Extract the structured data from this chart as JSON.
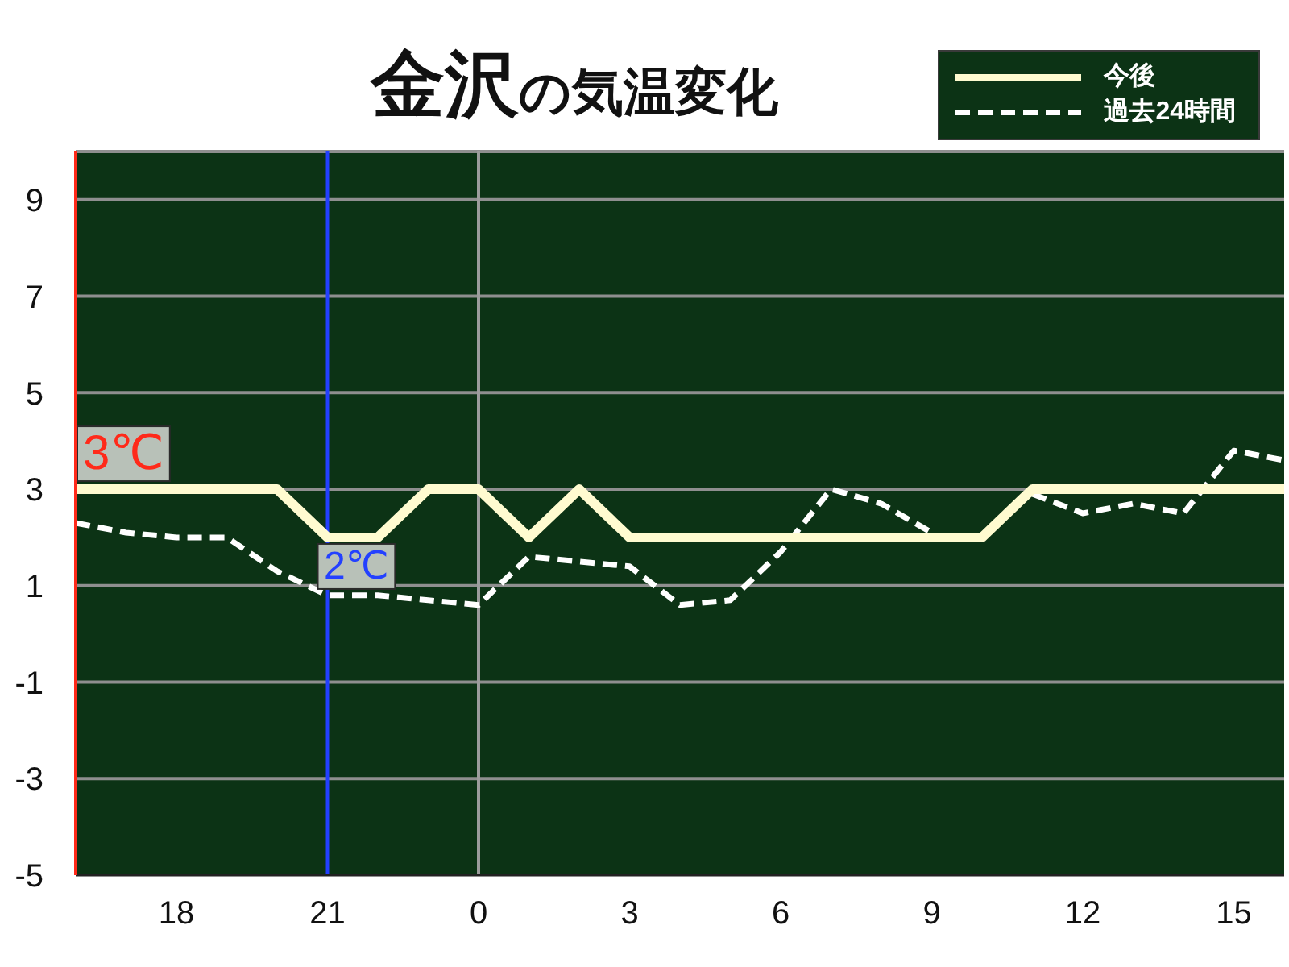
{
  "chart_data": {
    "type": "line",
    "title": "金沢の気温変化",
    "categories": [
      null,
      null,
      "18",
      null,
      null,
      "21",
      null,
      null,
      "0",
      null,
      null,
      "3",
      null,
      null,
      "6",
      null,
      null,
      "9",
      null,
      null,
      "12",
      null,
      null,
      "15",
      null
    ],
    "series": [
      {
        "name": "今後",
        "color": "#fffbd0",
        "line_style": "solid",
        "values": [
          3,
          3,
          3,
          3,
          3,
          2,
          2,
          3,
          3,
          2,
          3,
          2,
          2,
          2,
          2,
          2,
          2,
          2,
          2,
          3,
          3,
          3,
          3,
          3,
          3
        ]
      },
      {
        "name": "過去24時間",
        "color": "#ffffff",
        "line_style": "dashed",
        "values": [
          2.3,
          2.1,
          2.0,
          2.0,
          1.3,
          0.8,
          0.8,
          0.7,
          0.6,
          1.6,
          1.5,
          1.4,
          0.6,
          0.7,
          1.7,
          3.0,
          2.7,
          2.1,
          null,
          2.9,
          2.5,
          2.7,
          2.5,
          3.8,
          3.6
        ]
      }
    ],
    "ylim": [
      -5,
      10
    ],
    "yticks": [
      -5,
      -3,
      -1,
      1,
      3,
      5,
      7,
      9
    ],
    "grid": "y",
    "legend": "top right",
    "ref_lines": [
      {
        "axis": "x",
        "value": "21",
        "color": "#2340ff"
      },
      {
        "axis": "x",
        "value": "0",
        "color": "#9c9c9c"
      }
    ],
    "annotations": [
      {
        "text": "3℃",
        "y": 3
      },
      {
        "text": "2℃",
        "x": "21",
        "y": 2
      }
    ]
  }
}
